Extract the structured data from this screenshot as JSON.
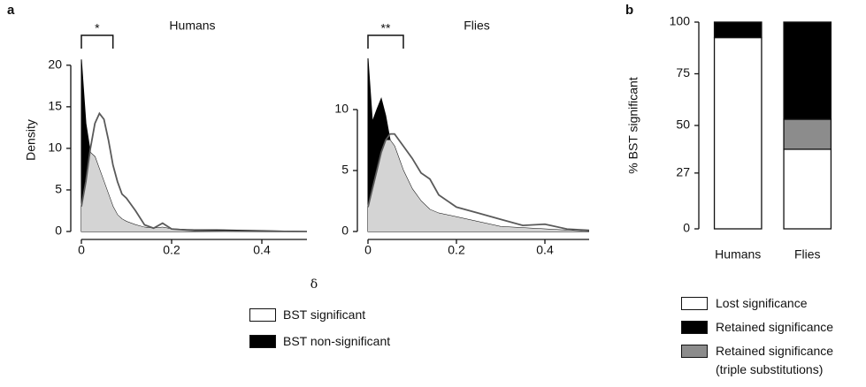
{
  "panel_labels": [
    "a",
    "b"
  ],
  "chart_data": [
    {
      "type": "density",
      "title": "Humans",
      "ylabel": "Density",
      "xlabel": "δ",
      "annotation": {
        "text": "*",
        "bracket": [
          0,
          0.07
        ]
      },
      "x": [
        0,
        0.01,
        0.02,
        0.03,
        0.04,
        0.05,
        0.06,
        0.07,
        0.08,
        0.09,
        0.1,
        0.12,
        0.14,
        0.16,
        0.18,
        0.2,
        0.25,
        0.3,
        0.4,
        0.5
      ],
      "series": [
        {
          "name": "BST significant",
          "color": "#5a5a5a",
          "values": [
            3,
            6,
            10,
            13,
            14.2,
            13.5,
            11,
            8,
            6,
            4.5,
            4,
            2.5,
            0.8,
            0.4,
            1.0,
            0.3,
            0.1,
            0.05,
            0.02,
            0
          ]
        },
        {
          "name": "BST non-significant",
          "color": "#000000",
          "values": [
            20.7,
            13,
            9.5,
            9,
            7.5,
            6,
            4.5,
            3,
            2,
            1.5,
            1.2,
            0.8,
            0.5,
            0.4,
            0.5,
            0.3,
            0.2,
            0.2,
            0.1,
            0
          ]
        }
      ],
      "overlap_color": "#d4d4d4",
      "xlim": [
        0,
        0.5
      ],
      "xticks": [
        0,
        0.2,
        0.4
      ],
      "ylim": [
        0,
        22
      ],
      "yticks": [
        0,
        5,
        10,
        15,
        20
      ]
    },
    {
      "type": "density",
      "title": "Flies",
      "annotation": {
        "text": "**",
        "bracket": [
          0,
          0.08
        ]
      },
      "x": [
        0,
        0.01,
        0.02,
        0.03,
        0.04,
        0.05,
        0.06,
        0.07,
        0.08,
        0.1,
        0.12,
        0.14,
        0.16,
        0.2,
        0.25,
        0.3,
        0.35,
        0.4,
        0.45,
        0.5
      ],
      "series": [
        {
          "color": "#5a5a5a",
          "values": [
            2,
            3.5,
            5,
            6.5,
            7.5,
            8,
            8,
            7.5,
            7,
            6,
            4.8,
            4.3,
            3,
            2,
            1.5,
            1,
            0.5,
            0.6,
            0.2,
            0.1
          ]
        },
        {
          "color": "#000000",
          "values": [
            14.2,
            9,
            10,
            10.9,
            9.5,
            7.5,
            7,
            6,
            5,
            3.5,
            2.5,
            1.8,
            1.5,
            1.2,
            0.8,
            0.4,
            0.3,
            0.2,
            0.1,
            0
          ]
        }
      ],
      "overlap_color": "#d4d4d4",
      "xlim": [
        0,
        0.5
      ],
      "xticks": [
        0,
        0.2,
        0.4
      ],
      "ylim": [
        0,
        15
      ],
      "yticks": [
        0,
        5,
        10
      ]
    },
    {
      "type": "stacked_bar",
      "ylabel": "% BST significant",
      "categories": [
        "Humans",
        "Flies"
      ],
      "series": [
        {
          "name": "Lost significance",
          "color": "#ffffff",
          "values": [
            92.5,
            38.5
          ]
        },
        {
          "name": "Retained significance",
          "color": "#000000",
          "values": [
            7.5,
            47
          ]
        },
        {
          "name": "Retained significance\n(triple substitutions)",
          "color": "#8c8c8c",
          "values": [
            0,
            14.5
          ]
        }
      ],
      "ylim": [
        0,
        100
      ],
      "yticks": [
        0,
        27,
        50,
        75,
        100
      ]
    }
  ]
}
